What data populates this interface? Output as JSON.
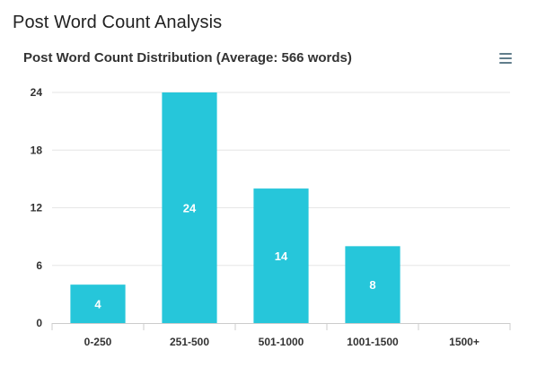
{
  "page_title": "Post Word Count Analysis",
  "menu_icon": "hamburger-menu-icon",
  "colors": {
    "bar": "#26c6da",
    "grid": "#e6e6e6",
    "axis": "#cccccc",
    "menu_icon": "#607d8b"
  },
  "chart_data": {
    "type": "bar",
    "title": "Post Word Count Distribution (Average: 566 words)",
    "xlabel": "",
    "ylabel": "",
    "categories": [
      "0-250",
      "251-500",
      "501-1000",
      "1001-1500",
      "1500+"
    ],
    "values": [
      4,
      24,
      14,
      8,
      0
    ],
    "data_labels": [
      "4",
      "24",
      "14",
      "8",
      ""
    ],
    "ylim": [
      0,
      24
    ],
    "yticks": [
      0,
      6,
      12,
      18,
      24
    ],
    "grid": true,
    "legend": "none"
  }
}
